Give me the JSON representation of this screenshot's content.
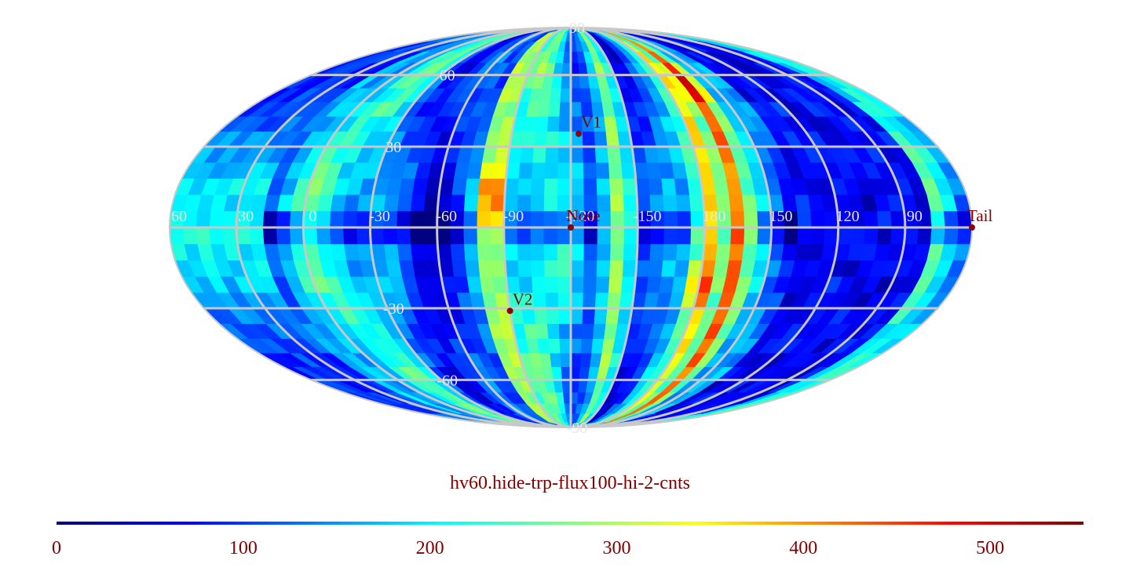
{
  "title": "hv60.hide-trp-flux100-hi-2-cnts",
  "projection": "mollweide",
  "colormap": "jet",
  "colors": {
    "grid": "#c8c8c8",
    "grid_label": "#e6e6e6",
    "marker": "#8b0000",
    "marker_label": "#800000",
    "title": "#800000"
  },
  "grid": {
    "lat_labels": [
      {
        "text": "90",
        "lat": 90
      },
      {
        "text": "60",
        "lat": 60
      },
      {
        "text": "30",
        "lat": 30
      },
      {
        "text": "-30",
        "lat": -30
      },
      {
        "text": "-60",
        "lat": -60
      },
      {
        "text": "-90",
        "lat": -90
      }
    ],
    "lon_labels": [
      "60",
      "30",
      "0",
      "-30",
      "-60",
      "-90",
      "-120",
      "-150",
      "180",
      "150",
      "120",
      "90"
    ]
  },
  "markers": [
    {
      "name": "V1",
      "lat": 35,
      "lon_offset": 4
    },
    {
      "name": "Nose",
      "lat": 0,
      "lon_offset": 0
    },
    {
      "name": "V2",
      "lat": -31,
      "lon_offset": -30
    },
    {
      "name": "Tail",
      "lat": 0,
      "lon_offset": 180
    }
  ],
  "colorbar": {
    "min": 0,
    "max": 550,
    "ticks": [
      "0",
      "100",
      "200",
      "300",
      "400",
      "500"
    ]
  },
  "intensity_bands": [
    {
      "lon_offset": -36,
      "width": 8,
      "value": 380,
      "peak_lat": 12,
      "peak_value": 520
    },
    {
      "lon_offset": 22,
      "width": 10,
      "value": 300
    },
    {
      "lon_offset": 62,
      "width": 8,
      "value": 380,
      "peak_lat": -22,
      "peak_value": 500
    },
    {
      "lon_offset": 75,
      "width": 10,
      "value": 420,
      "peak_lat": 55,
      "peak_value": 500
    }
  ]
}
